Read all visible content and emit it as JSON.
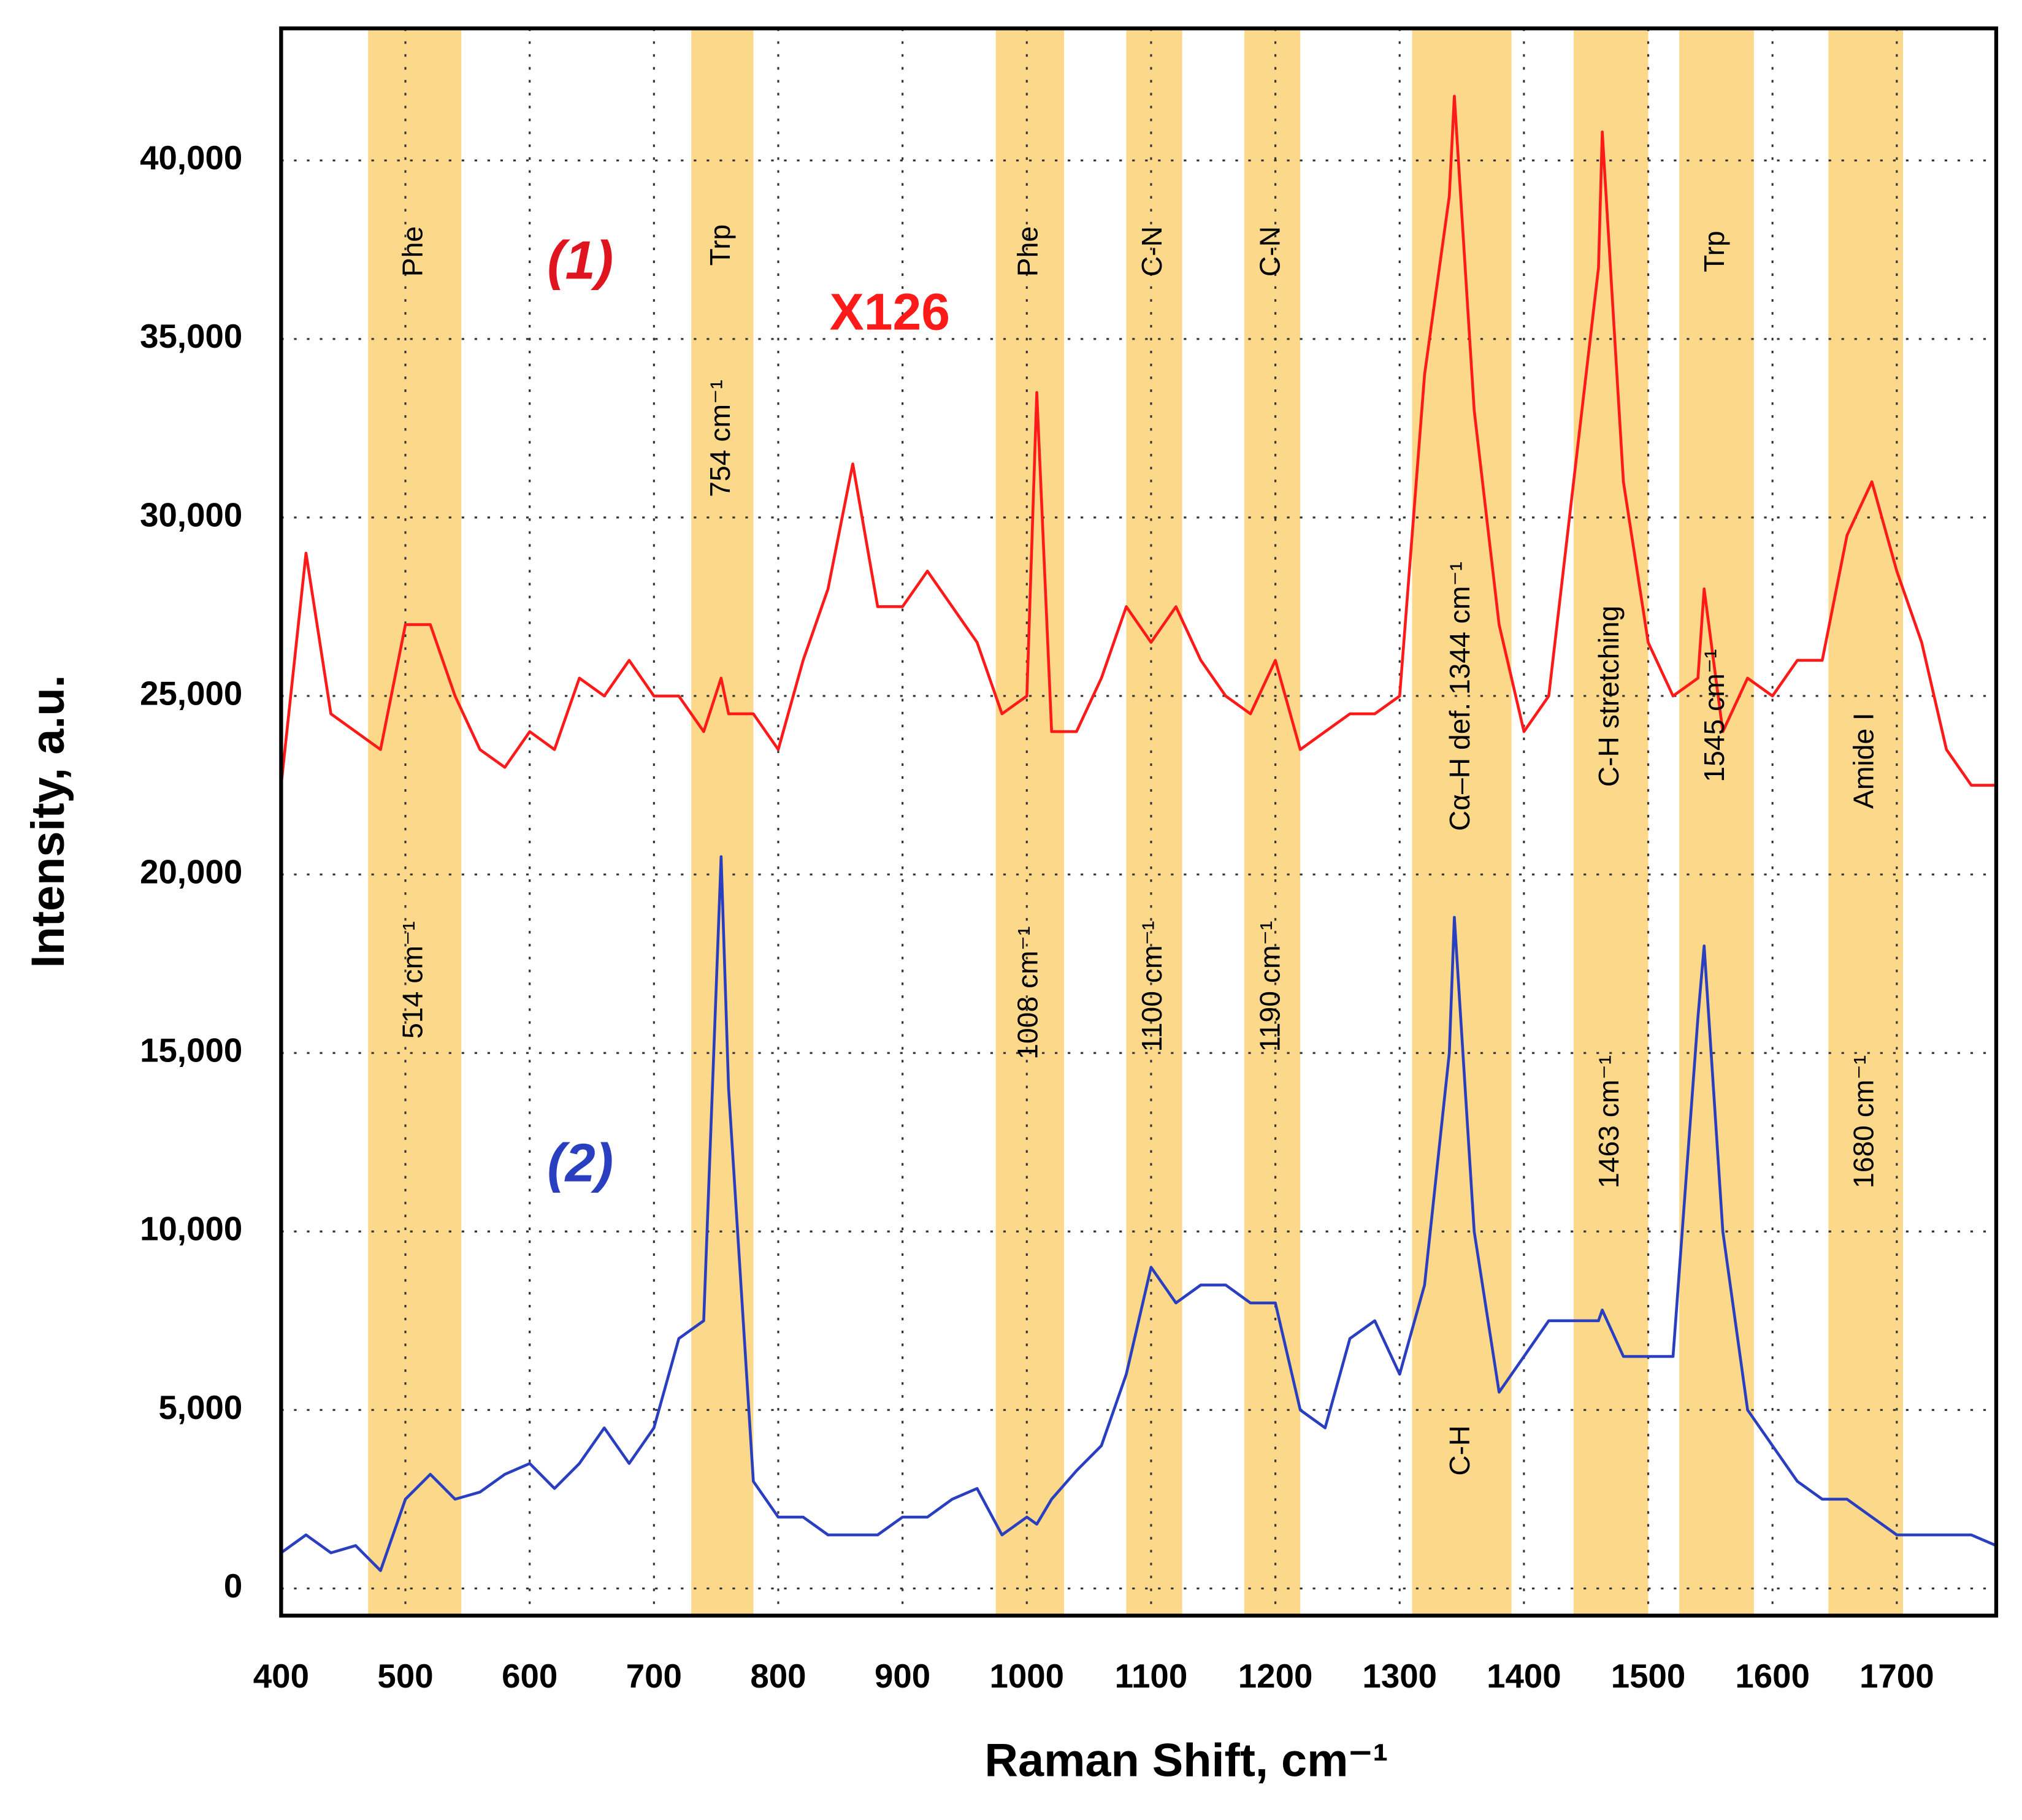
{
  "chart_data": {
    "type": "line",
    "x_label": "Raman Shift, cm⁻¹",
    "y_label": "Intensity, a.u.",
    "xlim": [
      400,
      1780
    ],
    "ylim": [
      -760,
      43700
    ],
    "xticks": [
      400,
      500,
      600,
      700,
      800,
      900,
      1000,
      1100,
      1200,
      1300,
      1400,
      1500,
      1600,
      1700
    ],
    "yticks": [
      0,
      {
        "value": 5000,
        "label": "5,000"
      },
      {
        "value": 10000,
        "label": "10,000"
      },
      {
        "value": 15000,
        "label": "15,000"
      },
      {
        "value": 20000,
        "label": "20,000"
      },
      {
        "value": 25000,
        "label": "25,000"
      },
      {
        "value": 30000,
        "label": "30,000"
      },
      {
        "value": 35000,
        "label": "35,000"
      },
      {
        "value": 40000,
        "label": "40,000"
      }
    ],
    "grid": true,
    "band_color": "#fcd98a",
    "x": [
      400,
      420,
      440,
      460,
      480,
      500,
      520,
      540,
      560,
      580,
      600,
      620,
      640,
      660,
      680,
      700,
      720,
      740,
      754,
      760,
      780,
      800,
      820,
      840,
      860,
      880,
      900,
      920,
      940,
      960,
      980,
      1000,
      1008,
      1020,
      1040,
      1060,
      1080,
      1100,
      1120,
      1140,
      1160,
      1180,
      1200,
      1220,
      1240,
      1260,
      1280,
      1300,
      1320,
      1340,
      1344,
      1360,
      1380,
      1400,
      1420,
      1440,
      1460,
      1463,
      1480,
      1500,
      1520,
      1540,
      1545,
      1560,
      1580,
      1600,
      1620,
      1640,
      1660,
      1680,
      1700,
      1720,
      1740,
      1760,
      1780
    ],
    "series": [
      {
        "name": "(1)",
        "color": "#ff1a1a",
        "values": [
          22500,
          29000,
          24500,
          24000,
          23500,
          27000,
          27000,
          25000,
          23500,
          23000,
          24000,
          23500,
          25500,
          25000,
          26000,
          25000,
          25000,
          24000,
          25500,
          24500,
          24500,
          23500,
          26000,
          28000,
          31500,
          27500,
          27500,
          28500,
          27500,
          26500,
          24500,
          25000,
          33500,
          24000,
          24000,
          25500,
          27500,
          26500,
          27500,
          26000,
          25000,
          24500,
          26000,
          23500,
          24000,
          24500,
          24500,
          25000,
          34000,
          39000,
          41800,
          33000,
          27000,
          24000,
          25000,
          31000,
          37000,
          40800,
          31000,
          26500,
          25000,
          25500,
          28000,
          24000,
          25500,
          25000,
          26000,
          26000,
          29500,
          31000,
          28500,
          26500,
          23500,
          22500,
          22500
        ]
      },
      {
        "name": "(2)",
        "color": "#2a3fc0",
        "values": [
          1000,
          1500,
          1000,
          1200,
          500,
          2500,
          3200,
          2500,
          2700,
          3200,
          3500,
          2800,
          3500,
          4500,
          3500,
          4500,
          7000,
          7500,
          20500,
          14000,
          3000,
          2000,
          2000,
          1500,
          1500,
          1500,
          2000,
          2000,
          2500,
          2800,
          1500,
          2000,
          1800,
          2500,
          3300,
          4000,
          6000,
          9000,
          8000,
          8500,
          8500,
          8000,
          8000,
          5000,
          4500,
          7000,
          7500,
          6000,
          8500,
          15000,
          18800,
          10000,
          5500,
          6500,
          7500,
          7500,
          7500,
          7800,
          6500,
          6500,
          6500,
          16000,
          18000,
          10000,
          5000,
          4000,
          3000,
          2500,
          2500,
          2000,
          1500,
          1500,
          1500,
          1500,
          1200
        ]
      }
    ],
    "bands": [
      {
        "x0": 470,
        "x1": 545,
        "labels": [
          "Phe",
          "514 cm⁻¹"
        ]
      },
      {
        "x0": 730,
        "x1": 780,
        "labels": [
          "Trp",
          "754 cm⁻¹"
        ]
      },
      {
        "x0": 975,
        "x1": 1030,
        "labels": [
          "Phe",
          "1008 cm⁻¹"
        ]
      },
      {
        "x0": 1080,
        "x1": 1125,
        "labels": [
          "C-N",
          "1100 cm⁻¹"
        ]
      },
      {
        "x0": 1175,
        "x1": 1220,
        "labels": [
          "C-N",
          "1190 cm⁻¹"
        ]
      },
      {
        "x0": 1310,
        "x1": 1390,
        "labels": [
          "Cα–H def. 1344 cm⁻¹",
          "C-H"
        ]
      },
      {
        "x0": 1440,
        "x1": 1500,
        "labels": [
          "C-H stretching",
          "1463 cm⁻¹"
        ]
      },
      {
        "x0": 1525,
        "x1": 1585,
        "labels": [
          "Trp",
          "1545 cm⁻¹"
        ]
      },
      {
        "x0": 1645,
        "x1": 1705,
        "labels": [
          "Amide I",
          "1680 cm⁻¹"
        ]
      }
    ],
    "annotations": [
      {
        "text": "(1)",
        "color": "#e0141e"
      },
      {
        "text": "X126",
        "color": "#ff1a1a"
      },
      {
        "text": "(2)",
        "color": "#2a3fc0"
      }
    ]
  }
}
